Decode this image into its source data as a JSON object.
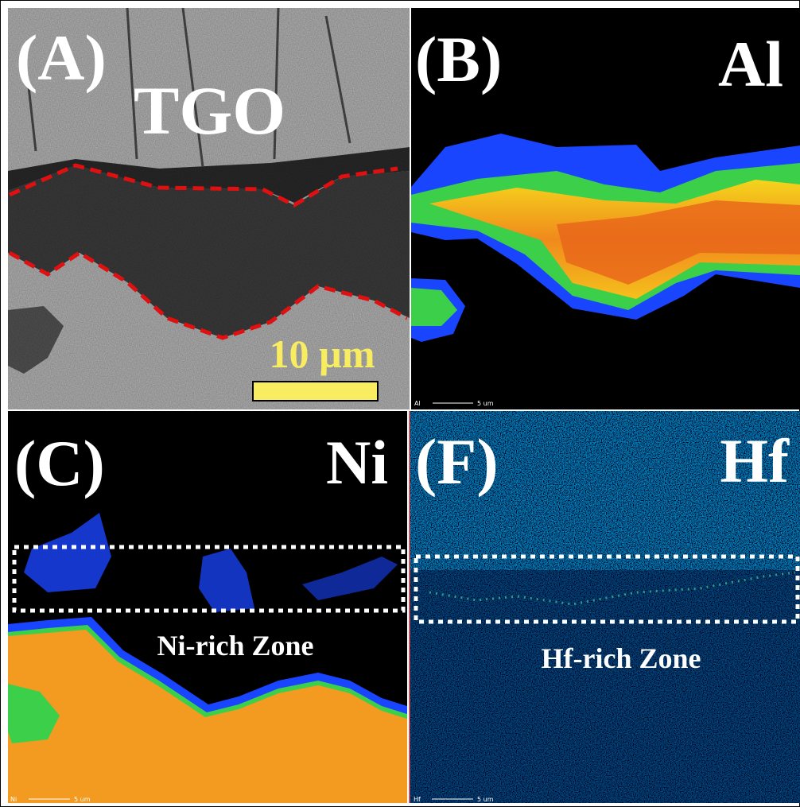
{
  "panels": [
    {
      "label": "(A)",
      "title": "TGO",
      "scale_bar": "10 µm"
    },
    {
      "label": "(B)",
      "element": "Al",
      "map_element": "Al",
      "map_scale": "5 um"
    },
    {
      "label": "(C)",
      "element": "Ni",
      "zone": "Ni-rich Zone",
      "map_element": "Ni",
      "map_scale": "5 um"
    },
    {
      "label": "(F)",
      "element": "Hf",
      "zone": "Hf-rich Zone",
      "map_element": "Hf",
      "map_scale": "5 um"
    }
  ]
}
